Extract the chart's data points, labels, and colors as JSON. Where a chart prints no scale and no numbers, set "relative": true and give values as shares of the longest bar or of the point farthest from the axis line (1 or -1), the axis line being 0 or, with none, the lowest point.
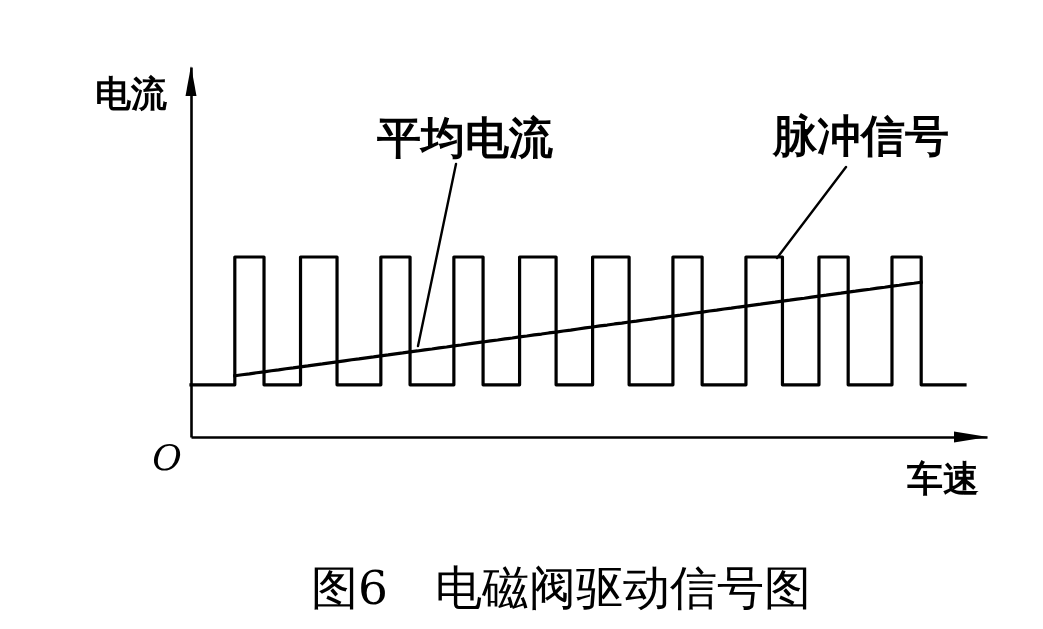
{
  "chart_data": {
    "type": "step",
    "title": "图6　电磁阀驱动信号图",
    "xlabel": "车速",
    "ylabel": "电流",
    "annotations": [
      "O"
    ],
    "relative": true,
    "categories": [
      null,
      null,
      null,
      null,
      null,
      null,
      null,
      null,
      null,
      null,
      null,
      null,
      null,
      null,
      null,
      null,
      null,
      null,
      null,
      null,
      null,
      null,
      null,
      null,
      null,
      null,
      null,
      null,
      null,
      null,
      null,
      null,
      null,
      null,
      null,
      null,
      null,
      null,
      null,
      null,
      null,
      null,
      null,
      null,
      null,
      null,
      null,
      null,
      null,
      null,
      null,
      null,
      null,
      null,
      null,
      null,
      null,
      null,
      null,
      null,
      null,
      null,
      null,
      null,
      null,
      null,
      null,
      null,
      null,
      null,
      null,
      null,
      null,
      null,
      null,
      null,
      null,
      null,
      null,
      null,
      null,
      null,
      null,
      null,
      null,
      null,
      null,
      null,
      null,
      null,
      null,
      null,
      null,
      null,
      null,
      null,
      null,
      null,
      null,
      null,
      null,
      null,
      null,
      null,
      null,
      null,
      null
    ],
    "series": [
      {
        "name": "脉冲信号",
        "type": "step",
        "color": "#000000",
        "values": [
          0.29,
          0.29,
          0.29,
          0.29,
          0.29,
          0.29,
          1,
          1,
          1,
          1,
          0.29,
          0.29,
          0.29,
          0.29,
          0.29,
          1,
          1,
          1,
          1,
          1,
          0.29,
          0.29,
          0.29,
          0.29,
          0.29,
          0.29,
          1,
          1,
          1,
          1,
          0.29,
          0.29,
          0.29,
          0.29,
          0.29,
          0.29,
          1,
          1,
          1,
          1,
          0.29,
          0.29,
          0.29,
          0.29,
          0.29,
          1,
          1,
          1,
          1,
          1,
          0.29,
          0.29,
          0.29,
          0.29,
          0.29,
          1,
          1,
          1,
          1,
          1,
          0.29,
          0.29,
          0.29,
          0.29,
          0.29,
          0.29,
          1,
          1,
          1,
          1,
          0.29,
          0.29,
          0.29,
          0.29,
          0.29,
          0.29,
          1,
          1,
          1,
          1,
          1,
          0.29,
          0.29,
          0.29,
          0.29,
          0.29,
          1,
          1,
          1,
          1,
          0.29,
          0.29,
          0.29,
          0.29,
          0.29,
          0.29,
          1,
          1,
          1,
          1,
          0.29,
          0.29,
          0.29,
          0.29,
          0.29,
          0.29,
          0.29
        ]
      },
      {
        "name": "平均电流",
        "type": "line",
        "color": "#000000",
        "values": [
          null,
          null,
          null,
          null,
          null,
          null,
          0.34,
          0.346,
          0.351,
          0.357,
          0.362,
          0.368,
          0.373,
          0.379,
          0.384,
          0.39,
          0.395,
          0.401,
          0.406,
          0.412,
          0.417,
          0.423,
          0.429,
          0.434,
          0.44,
          0.445,
          0.451,
          0.456,
          0.462,
          0.467,
          0.473,
          0.478,
          0.484,
          0.489,
          0.495,
          0.5,
          0.506,
          0.511,
          0.517,
          0.523,
          0.528,
          0.534,
          0.539,
          0.545,
          0.55,
          0.556,
          0.561,
          0.567,
          0.572,
          0.578,
          0.583,
          0.589,
          0.594,
          0.6,
          0.606,
          0.611,
          0.617,
          0.622,
          0.628,
          0.633,
          0.639,
          0.644,
          0.65,
          0.655,
          0.661,
          0.666,
          0.672,
          0.677,
          0.683,
          0.689,
          0.694,
          0.7,
          0.705,
          0.711,
          0.716,
          0.722,
          0.727,
          0.733,
          0.738,
          0.744,
          0.749,
          0.755,
          0.76,
          0.766,
          0.771,
          0.777,
          0.783,
          0.788,
          0.794,
          0.799,
          0.805,
          0.81,
          0.816,
          0.821,
          0.827,
          0.832,
          0.838,
          0.843,
          0.849,
          0.854,
          0.86,
          null,
          null,
          null,
          null,
          null,
          null
        ]
      }
    ]
  }
}
